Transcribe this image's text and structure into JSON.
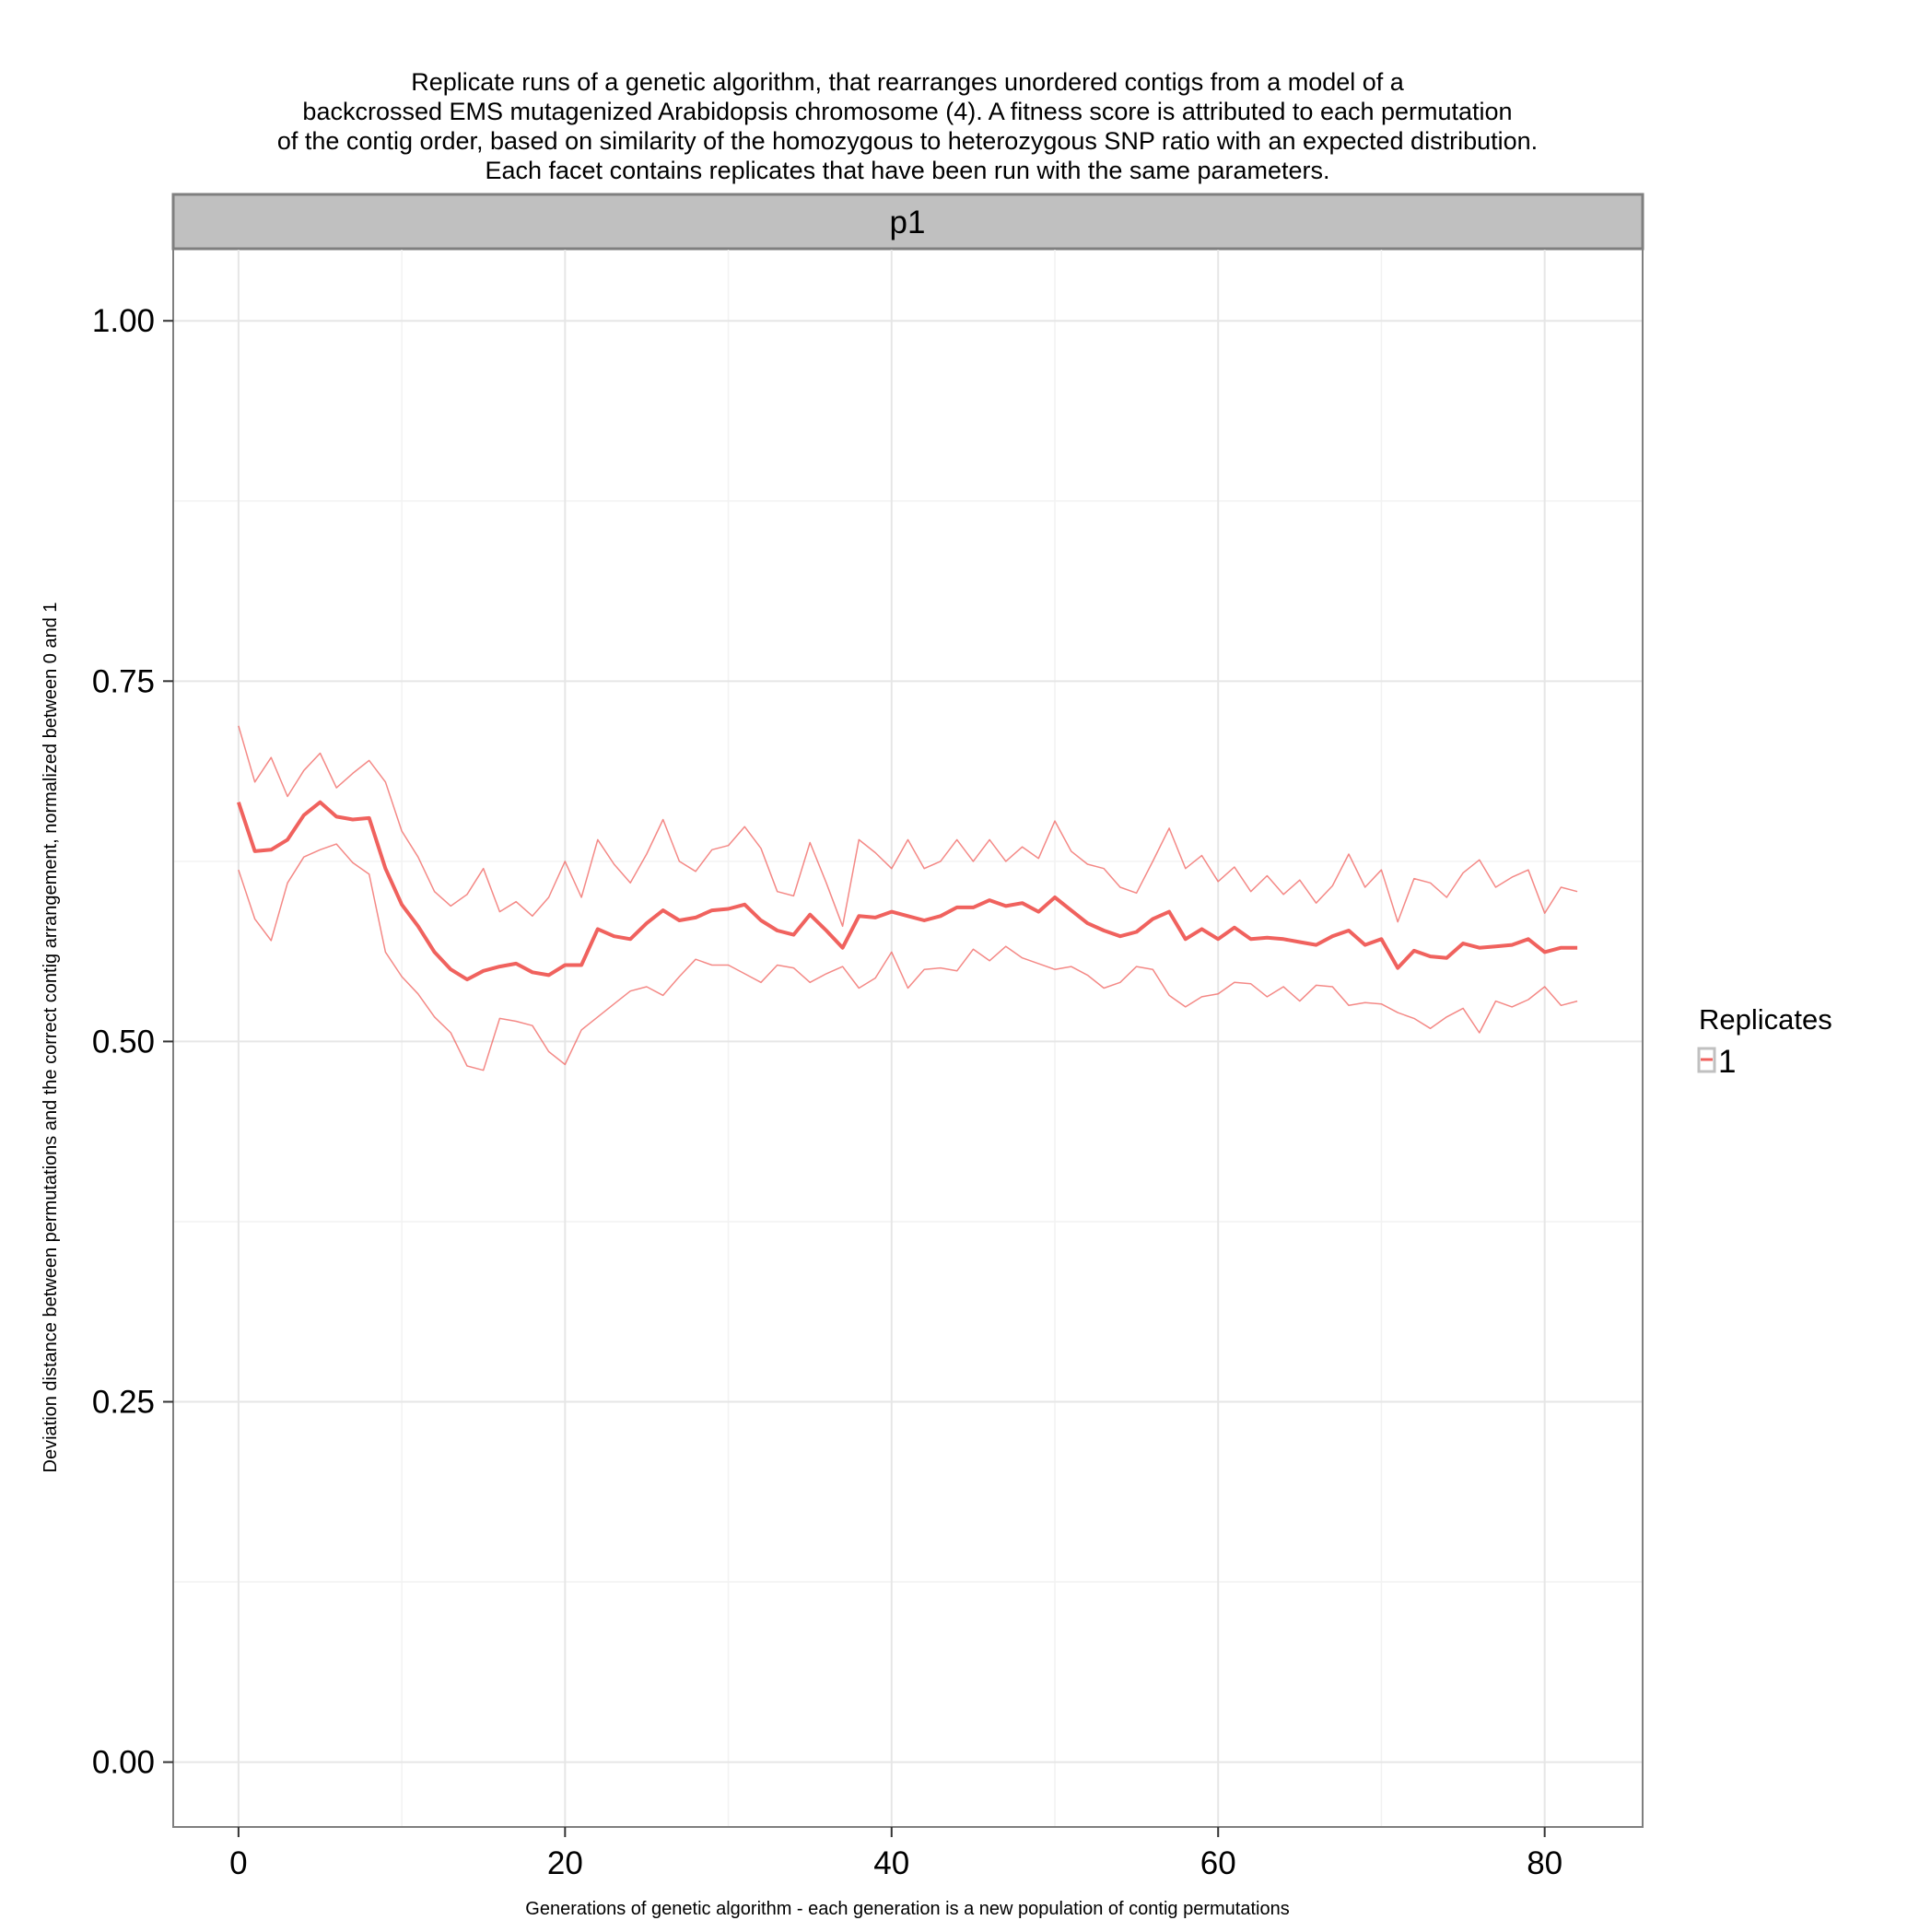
{
  "chart_data": {
    "type": "line",
    "title": [
      "Replicate runs of a genetic algorithm, that rearranges unordered contigs from a model of a",
      "backcrossed EMS mutagenized Arabidopsis chromosome (4). A fitness score is attributed to each permutation",
      "of the contig order, based on similarity of the homozygous to heterozygous SNP ratio with an expected distribution.",
      "Each facet contains replicates that have been run with the same parameters."
    ],
    "facet_label": "p1",
    "xlabel": "Generations of genetic algorithm - each generation is a new population of contig permutations",
    "ylabel": "Deviation distance between permutations and the correct contig arrangement, normalized between 0 and 1",
    "x_ticks": [
      "0",
      "20",
      "40",
      "60",
      "80"
    ],
    "y_ticks": [
      "0.00",
      "0.25",
      "0.50",
      "0.75",
      "1.00"
    ],
    "xlim": [
      -4,
      86
    ],
    "ylim": [
      -0.045,
      1.05
    ],
    "grid": true,
    "legend": {
      "title": "Replicates",
      "entries": [
        "1"
      ],
      "placement": "right"
    },
    "colors": {
      "series": "#F0625E",
      "panel_border": "#7f7f7f",
      "strip_fill": "#c0c0c0",
      "grid": "#e6e6e6"
    },
    "x": [
      0,
      1,
      2,
      3,
      4,
      5,
      6,
      7,
      8,
      9,
      10,
      11,
      12,
      13,
      14,
      15,
      16,
      17,
      18,
      19,
      20,
      21,
      22,
      23,
      24,
      25,
      26,
      27,
      28,
      29,
      30,
      31,
      32,
      33,
      34,
      35,
      36,
      37,
      38,
      39,
      40,
      41,
      42,
      43,
      44,
      45,
      46,
      47,
      48,
      49,
      50,
      51,
      52,
      53,
      54,
      55,
      56,
      57,
      58,
      59,
      60,
      61,
      62,
      63,
      64,
      65,
      66,
      67,
      68,
      69,
      70,
      71,
      72,
      73,
      74,
      75,
      76,
      77,
      78,
      79,
      80,
      81,
      82
    ],
    "series": [
      {
        "name": "1",
        "role": "mean",
        "values": [
          0.666,
          0.632,
          0.633,
          0.64,
          0.657,
          0.666,
          0.656,
          0.654,
          0.655,
          0.62,
          0.595,
          0.58,
          0.562,
          0.55,
          0.543,
          0.549,
          0.552,
          0.554,
          0.548,
          0.546,
          0.553,
          0.553,
          0.578,
          0.573,
          0.571,
          0.582,
          0.591,
          0.584,
          0.586,
          0.591,
          0.592,
          0.595,
          0.584,
          0.577,
          0.574,
          0.588,
          0.577,
          0.565,
          0.587,
          0.586,
          0.59,
          0.587,
          0.584,
          0.587,
          0.593,
          0.593,
          0.598,
          0.594,
          0.596,
          0.59,
          0.6,
          0.591,
          0.582,
          0.577,
          0.573,
          0.576,
          0.585,
          0.59,
          0.571,
          0.578,
          0.571,
          0.579,
          0.571,
          0.572,
          0.571,
          0.569,
          0.567,
          0.573,
          0.577,
          0.567,
          0.571,
          0.551,
          0.563,
          0.559,
          0.558,
          0.568,
          0.565,
          0.566,
          0.567,
          0.571,
          0.562,
          0.565,
          0.565
        ]
      },
      {
        "role": "upper",
        "values": [
          0.719,
          0.68,
          0.697,
          0.67,
          0.688,
          0.7,
          0.676,
          0.686,
          0.695,
          0.68,
          0.646,
          0.628,
          0.604,
          0.594,
          0.602,
          0.62,
          0.59,
          0.597,
          0.587,
          0.6,
          0.625,
          0.6,
          0.64,
          0.623,
          0.61,
          0.63,
          0.654,
          0.625,
          0.618,
          0.633,
          0.636,
          0.649,
          0.634,
          0.604,
          0.601,
          0.638,
          0.61,
          0.58,
          0.64,
          0.631,
          0.62,
          0.64,
          0.62,
          0.625,
          0.64,
          0.625,
          0.64,
          0.625,
          0.635,
          0.627,
          0.653,
          0.632,
          0.623,
          0.62,
          0.607,
          0.603,
          0.625,
          0.648,
          0.62,
          0.629,
          0.611,
          0.621,
          0.604,
          0.615,
          0.602,
          0.612,
          0.596,
          0.608,
          0.63,
          0.607,
          0.619,
          0.583,
          0.613,
          0.61,
          0.6,
          0.617,
          0.626,
          0.607,
          0.614,
          0.619,
          0.589,
          0.607,
          0.604
        ]
      },
      {
        "role": "lower",
        "values": [
          0.619,
          0.585,
          0.57,
          0.61,
          0.628,
          0.633,
          0.637,
          0.624,
          0.616,
          0.562,
          0.545,
          0.533,
          0.517,
          0.506,
          0.483,
          0.48,
          0.516,
          0.514,
          0.511,
          0.493,
          0.484,
          0.508,
          0.517,
          0.526,
          0.535,
          0.538,
          0.532,
          0.545,
          0.557,
          0.553,
          0.553,
          0.547,
          0.541,
          0.553,
          0.551,
          0.541,
          0.547,
          0.552,
          0.537,
          0.544,
          0.562,
          0.537,
          0.55,
          0.551,
          0.549,
          0.564,
          0.556,
          0.566,
          0.558,
          0.554,
          0.55,
          0.552,
          0.546,
          0.537,
          0.541,
          0.552,
          0.55,
          0.532,
          0.524,
          0.531,
          0.533,
          0.541,
          0.54,
          0.531,
          0.538,
          0.528,
          0.539,
          0.538,
          0.525,
          0.527,
          0.526,
          0.52,
          0.516,
          0.509,
          0.517,
          0.523,
          0.506,
          0.528,
          0.524,
          0.529,
          0.538,
          0.525,
          0.528
        ]
      }
    ]
  }
}
